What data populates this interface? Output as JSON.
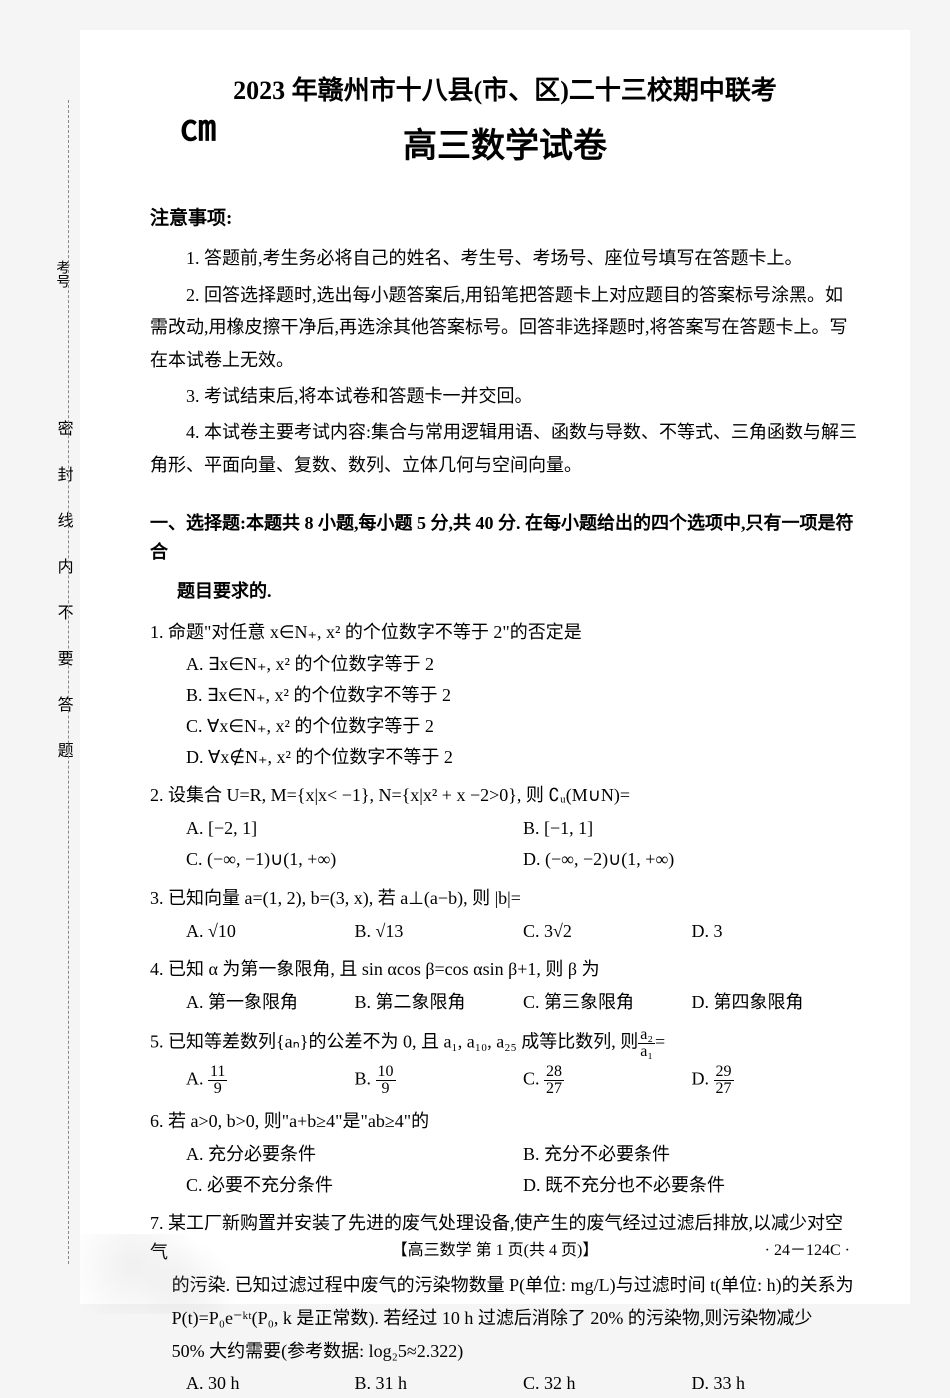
{
  "logo_text": "㎝",
  "side_vertical": "密封线内不要答题",
  "side_exam_num": "考号",
  "title": {
    "line1": "2023 年赣州市十八县(市、区)二十三校期中联考",
    "line2": "高三数学试卷"
  },
  "notice": {
    "header": "注意事项:",
    "items": [
      "1. 答题前,考生务必将自己的姓名、考生号、考场号、座位号填写在答题卡上。",
      "2. 回答选择题时,选出每小题答案后,用铅笔把答题卡上对应题目的答案标号涂黑。如需改动,用橡皮擦干净后,再选涂其他答案标号。回答非选择题时,将答案写在答题卡上。写在本试卷上无效。",
      "3. 考试结束后,将本试卷和答题卡一并交回。",
      "4. 本试卷主要考试内容:集合与常用逻辑用语、函数与导数、不等式、三角函数与解三角形、平面向量、复数、数列、立体几何与空间向量。"
    ]
  },
  "section1": {
    "header": "一、选择题:本题共 8 小题,每小题 5 分,共 40 分. 在每小题给出的四个选项中,只有一项是符合",
    "header_cont": "题目要求的."
  },
  "q1": {
    "stem": "1. 命题\"对任意 x∈N₊, x² 的个位数字不等于 2\"的否定是",
    "A": "A. ∃x∈N₊, x² 的个位数字等于 2",
    "B": "B. ∃x∈N₊, x² 的个位数字不等于 2",
    "C": "C. ∀x∈N₊, x² 的个位数字等于 2",
    "D": "D. ∀x∉N₊, x² 的个位数字不等于 2"
  },
  "q2": {
    "stem": "2. 设集合 U=R, M={x|x< −1}, N={x|x² + x −2>0}, 则 ∁ᵤ(M∪N)=",
    "A": "A. [−2, 1]",
    "B": "B. [−1, 1]",
    "C": "C. (−∞, −1)∪(1, +∞)",
    "D": "D. (−∞, −2)∪(1, +∞)"
  },
  "q3": {
    "stem": "3. 已知向量 a=(1, 2), b=(3, x), 若 a⊥(a−b), 则 |b|=",
    "A": "A. √10",
    "B": "B. √13",
    "C": "C. 3√2",
    "D": "D. 3"
  },
  "q4": {
    "stem": "4. 已知 α 为第一象限角, 且 sin αcos β=cos αsin β+1, 则 β 为",
    "A": "A. 第一象限角",
    "B": "B. 第二象限角",
    "C": "C. 第三象限角",
    "D": "D. 第四象限角"
  },
  "q5": {
    "stem_pre": "5. 已知等差数列{aₙ}的公差不为 0, 且 a₁, a₁₀, a₂₅ 成等比数列, 则",
    "stem_frac_num": "a₂",
    "stem_frac_den": "a₁",
    "stem_post": "=",
    "A": "A. ",
    "A_num": "11",
    "A_den": "9",
    "B": "B. ",
    "B_num": "10",
    "B_den": "9",
    "C": "C. ",
    "C_num": "28",
    "C_den": "27",
    "D": "D. ",
    "D_num": "29",
    "D_den": "27"
  },
  "q6": {
    "stem": "6. 若 a>0, b>0, 则\"a+b≥4\"是\"ab≥4\"的",
    "A": "A. 充分必要条件",
    "B": "B. 充分不必要条件",
    "C": "C. 必要不充分条件",
    "D": "D. 既不充分也不必要条件"
  },
  "q7": {
    "stem1": "7. 某工厂新购置并安装了先进的废气处理设备,使产生的废气经过过滤后排放,以减少对空气",
    "stem2": "的污染. 已知过滤过程中废气的污染物数量 P(单位: mg/L)与过滤时间 t(单位: h)的关系为",
    "stem3": "P(t)=P₀e⁻ᵏᵗ(P₀, k 是正常数). 若经过 10 h 过滤后消除了 20% 的污染物,则污染物减少",
    "stem4": "50% 大约需要(参考数据: log₂5≈2.322)",
    "A": "A. 30 h",
    "B": "B. 31 h",
    "C": "C. 32 h",
    "D": "D. 33 h"
  },
  "footer": "【高三数学  第 1 页(共 4 页)】",
  "footer_right": "· 24－124C ·"
}
